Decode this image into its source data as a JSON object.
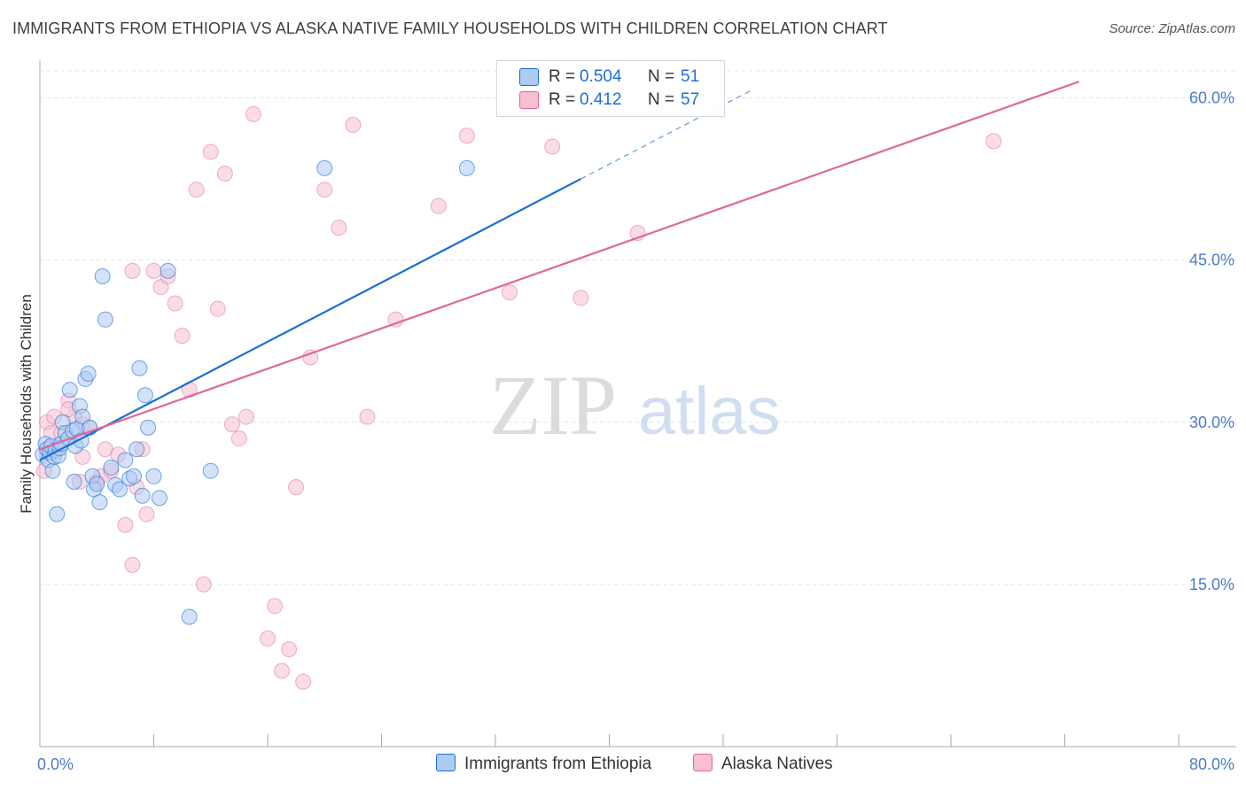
{
  "title": "IMMIGRANTS FROM ETHIOPIA VS ALASKA NATIVE FAMILY HOUSEHOLDS WITH CHILDREN CORRELATION CHART",
  "source": "Source: ZipAtlas.com",
  "watermark": {
    "zip": "ZIP",
    "atlas": "atlas"
  },
  "colors": {
    "blue": "#1a6fd6",
    "blue_fill": "#aecbf2",
    "pink": "#e0669a",
    "pink_fill": "#f6bfd2",
    "axis_text": "#4a7cc9",
    "grid": "#e3e3e3"
  },
  "legend_top": {
    "rows": [
      {
        "r_label": "R =",
        "r_value": "0.504",
        "n_label": "N =",
        "n_value": "51"
      },
      {
        "r_label": "R =",
        "r_value": "0.412",
        "n_label": "N =",
        "n_value": "57"
      }
    ]
  },
  "legend_bottom": {
    "series1": "Immigrants from Ethiopia",
    "series2": "Alaska Natives"
  },
  "chart_data": {
    "type": "scatter",
    "title": "IMMIGRANTS FROM ETHIOPIA VS ALASKA NATIVE FAMILY HOUSEHOLDS WITH CHILDREN CORRELATION CHART",
    "xlabel": "",
    "ylabel": "Family Households with Children",
    "xlim": [
      0,
      80
    ],
    "ylim": [
      0,
      62.5
    ],
    "x_tick_labels": [
      "0.0%",
      "80.0%"
    ],
    "y_ticks": [
      15,
      30,
      45,
      60
    ],
    "y_tick_labels": [
      "15.0%",
      "30.0%",
      "45.0%",
      "60.0%"
    ],
    "grid": true,
    "series": [
      {
        "name": "Immigrants from Ethiopia",
        "color": "#1a6fd6",
        "R": 0.504,
        "N": 51,
        "trend": {
          "x0": 0,
          "y0": 26.5,
          "x1": 38,
          "y1": 52.5,
          "dash_to_x": 50
        },
        "points": [
          [
            0.2,
            27.0
          ],
          [
            0.4,
            28.0
          ],
          [
            0.5,
            27.5
          ],
          [
            0.6,
            26.5
          ],
          [
            0.7,
            27.2
          ],
          [
            0.8,
            27.8
          ],
          [
            0.9,
            25.5
          ],
          [
            1.0,
            26.8
          ],
          [
            1.1,
            27.4
          ],
          [
            1.3,
            26.9
          ],
          [
            1.4,
            27.6
          ],
          [
            1.5,
            28.0
          ],
          [
            1.6,
            30.0
          ],
          [
            1.8,
            29.0
          ],
          [
            2.0,
            28.5
          ],
          [
            2.1,
            33.0
          ],
          [
            2.3,
            29.2
          ],
          [
            2.4,
            24.5
          ],
          [
            2.5,
            27.8
          ],
          [
            2.6,
            29.4
          ],
          [
            2.8,
            31.5
          ],
          [
            2.9,
            28.3
          ],
          [
            3.0,
            30.5
          ],
          [
            3.2,
            34.0
          ],
          [
            3.4,
            34.5
          ],
          [
            3.5,
            29.5
          ],
          [
            3.7,
            25.0
          ],
          [
            3.8,
            23.8
          ],
          [
            4.0,
            24.3
          ],
          [
            4.2,
            22.6
          ],
          [
            4.4,
            43.5
          ],
          [
            4.6,
            39.5
          ],
          [
            5.0,
            25.8
          ],
          [
            5.3,
            24.2
          ],
          [
            5.6,
            23.8
          ],
          [
            6.0,
            26.5
          ],
          [
            6.3,
            24.8
          ],
          [
            6.6,
            25.0
          ],
          [
            6.8,
            27.5
          ],
          [
            7.0,
            35.0
          ],
          [
            7.2,
            23.2
          ],
          [
            7.4,
            32.5
          ],
          [
            7.6,
            29.5
          ],
          [
            8.0,
            25.0
          ],
          [
            8.4,
            23.0
          ],
          [
            9.0,
            44.0
          ],
          [
            10.5,
            12.0
          ],
          [
            12.0,
            25.5
          ],
          [
            20.0,
            53.5
          ],
          [
            30.0,
            53.5
          ],
          [
            1.2,
            21.5
          ]
        ]
      },
      {
        "name": "Alaska Natives",
        "color": "#e0669a",
        "R": 0.412,
        "N": 57,
        "trend": {
          "x0": 0,
          "y0": 27.5,
          "x1": 73,
          "y1": 61.5
        },
        "points": [
          [
            0.3,
            25.5
          ],
          [
            0.5,
            30.0
          ],
          [
            0.8,
            29.0
          ],
          [
            1.0,
            30.5
          ],
          [
            1.5,
            29.0
          ],
          [
            2.0,
            32.0
          ],
          [
            2.4,
            30.5
          ],
          [
            2.8,
            24.5
          ],
          [
            3.0,
            29.8
          ],
          [
            3.5,
            29.5
          ],
          [
            4.0,
            24.5
          ],
          [
            4.3,
            25.0
          ],
          [
            4.6,
            27.5
          ],
          [
            5.0,
            25.5
          ],
          [
            5.5,
            27.0
          ],
          [
            6.0,
            20.5
          ],
          [
            6.5,
            16.8
          ],
          [
            6.8,
            24.0
          ],
          [
            7.2,
            27.5
          ],
          [
            7.5,
            21.5
          ],
          [
            8.0,
            44.0
          ],
          [
            8.5,
            42.5
          ],
          [
            9.0,
            43.5
          ],
          [
            9.5,
            41.0
          ],
          [
            10.0,
            38.0
          ],
          [
            10.5,
            33.0
          ],
          [
            11.0,
            51.5
          ],
          [
            11.5,
            15.0
          ],
          [
            12.0,
            55.0
          ],
          [
            12.5,
            40.5
          ],
          [
            13.0,
            53.0
          ],
          [
            13.5,
            29.8
          ],
          [
            14.0,
            28.5
          ],
          [
            14.5,
            30.5
          ],
          [
            15.0,
            58.5
          ],
          [
            16.0,
            10.0
          ],
          [
            16.5,
            13.0
          ],
          [
            17.0,
            7.0
          ],
          [
            17.5,
            9.0
          ],
          [
            18.0,
            24.0
          ],
          [
            18.5,
            6.0
          ],
          [
            19.0,
            36.0
          ],
          [
            20.0,
            51.5
          ],
          [
            21.0,
            48.0
          ],
          [
            22.0,
            57.5
          ],
          [
            23.0,
            30.5
          ],
          [
            25.0,
            39.5
          ],
          [
            28.0,
            50.0
          ],
          [
            30.0,
            56.5
          ],
          [
            33.0,
            42.0
          ],
          [
            36.0,
            55.5
          ],
          [
            38.0,
            41.5
          ],
          [
            42.0,
            47.5
          ],
          [
            67.0,
            56.0
          ],
          [
            2.0,
            31.2
          ],
          [
            6.5,
            44.0
          ],
          [
            3.0,
            26.8
          ]
        ]
      }
    ]
  }
}
